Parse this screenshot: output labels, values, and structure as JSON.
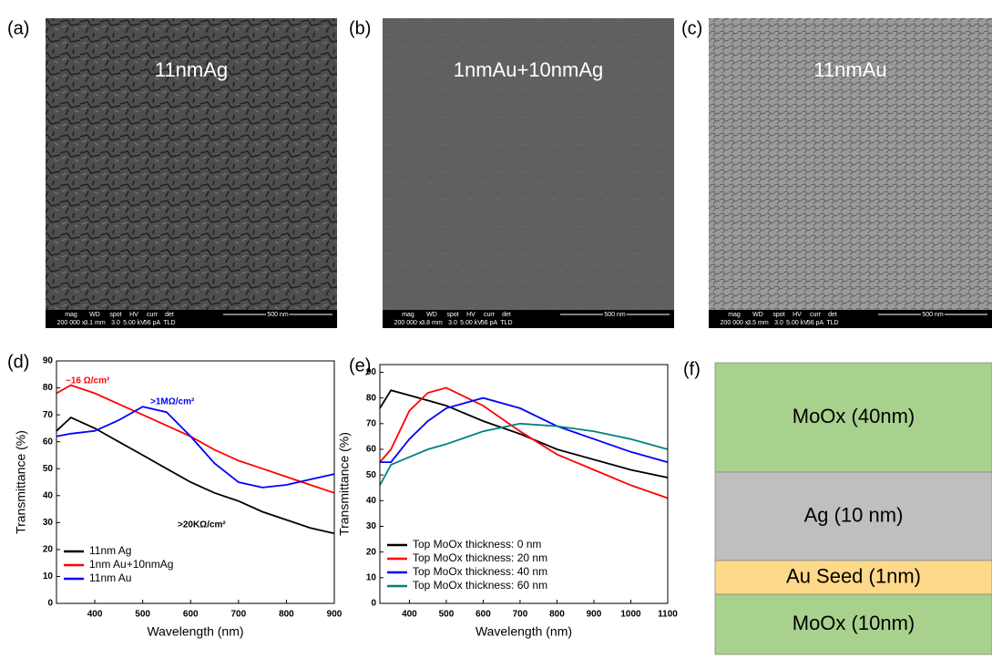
{
  "sem_panels": [
    {
      "panel": "(a)",
      "label": "11nmAg",
      "info_headers": [
        "mag",
        "WD",
        "spot",
        "HV",
        "curr",
        "det"
      ],
      "info_values": [
        "200 000 x",
        "3.1 mm",
        "3.0",
        "5.00 kV",
        "56 pA",
        "TLD"
      ],
      "scale": "500 nm"
    },
    {
      "panel": "(b)",
      "label": "1nmAu+10nmAg",
      "info_headers": [
        "mag",
        "WD",
        "spot",
        "HV",
        "curr",
        "det"
      ],
      "info_values": [
        "200 000 x",
        "3.8 mm",
        "3.0",
        "5.00 kV",
        "56 pA",
        "TLD"
      ],
      "scale": "500 nm"
    },
    {
      "panel": "(c)",
      "label": "11nmAu",
      "info_headers": [
        "mag",
        "WD",
        "spot",
        "HV",
        "curr",
        "det"
      ],
      "info_values": [
        "200 000 x",
        "3.5 mm",
        "3.0",
        "5.00 kV",
        "56 pA",
        "TLD"
      ],
      "scale": "500 nm"
    }
  ],
  "chart_data": [
    {
      "type": "line",
      "panel": "(d)",
      "x_label": "Wavelength (nm)",
      "y_label": "Transmittance (%)",
      "x": [
        320,
        350,
        400,
        450,
        500,
        550,
        600,
        650,
        700,
        750,
        800,
        850,
        900
      ],
      "xlim": [
        320,
        900
      ],
      "xticks": [
        400,
        500,
        600,
        700,
        800,
        900
      ],
      "ylim": [
        0,
        90
      ],
      "yticks": [
        0,
        10,
        20,
        30,
        40,
        50,
        60,
        70,
        80,
        90
      ],
      "legend": "lower left",
      "series": [
        {
          "name": "11nm Ag",
          "color": "#000000",
          "values": [
            64,
            69,
            65,
            60,
            55,
            50,
            45,
            41,
            38,
            34,
            31,
            28,
            26
          ]
        },
        {
          "name": "1nm Au+10nmAg",
          "color": "#ff0000",
          "values": [
            78,
            81,
            78,
            74,
            70,
            66,
            62,
            57,
            53,
            50,
            47,
            44,
            41
          ]
        },
        {
          "name": "11nm Au",
          "color": "#0000ff",
          "values": [
            62,
            63,
            64,
            68,
            73,
            71,
            62,
            52,
            45,
            43,
            44,
            46,
            48
          ]
        }
      ],
      "annotations": [
        {
          "text": "~16 Ω/cm²",
          "color": "#ff0000"
        },
        {
          "text": ">1MΩ/cm²",
          "color": "#0000ff"
        },
        {
          "text": ">20KΩ/cm²",
          "color": "#000000"
        }
      ]
    },
    {
      "type": "line",
      "panel": "(e)",
      "x_label": "Wavelength (nm)",
      "y_label": "Transmittance (%)",
      "x": [
        320,
        350,
        400,
        450,
        500,
        600,
        700,
        800,
        900,
        1000,
        1100
      ],
      "xlim": [
        320,
        1100
      ],
      "xticks": [
        400,
        500,
        600,
        700,
        800,
        900,
        1000,
        1100
      ],
      "ylim": [
        0,
        93
      ],
      "yticks": [
        0,
        10,
        20,
        30,
        40,
        50,
        60,
        70,
        80,
        90
      ],
      "legend": "lower left",
      "series": [
        {
          "name": "Top MoOx thickness: 0 nm",
          "color": "#000000",
          "values": [
            76,
            83,
            81,
            79,
            77,
            71,
            66,
            60,
            56,
            52,
            49
          ]
        },
        {
          "name": "Top MoOx thickness: 20 nm",
          "color": "#ff0000",
          "values": [
            55,
            60,
            75,
            82,
            84,
            77,
            67,
            58,
            52,
            46,
            41
          ]
        },
        {
          "name": "Top MoOx thickness: 40 nm",
          "color": "#0000ff",
          "values": [
            55,
            55,
            64,
            71,
            76,
            80,
            76,
            69,
            64,
            59,
            55
          ]
        },
        {
          "name": "Top MoOx thickness: 60 nm",
          "color": "#008080",
          "values": [
            46,
            54,
            57,
            60,
            62,
            67,
            70,
            69,
            67,
            64,
            60
          ]
        }
      ],
      "annotations": []
    }
  ],
  "stack": {
    "panel": "(f)",
    "layers": [
      {
        "label": "MoOx  (40nm)",
        "color": "#a9d18e"
      },
      {
        "label": "Ag (10 nm)",
        "color": "#bfbfbf"
      },
      {
        "label": "Au Seed (1nm)",
        "color": "#ffd98a"
      },
      {
        "label": "MoOx  (10nm)",
        "color": "#a9d18e"
      }
    ]
  }
}
